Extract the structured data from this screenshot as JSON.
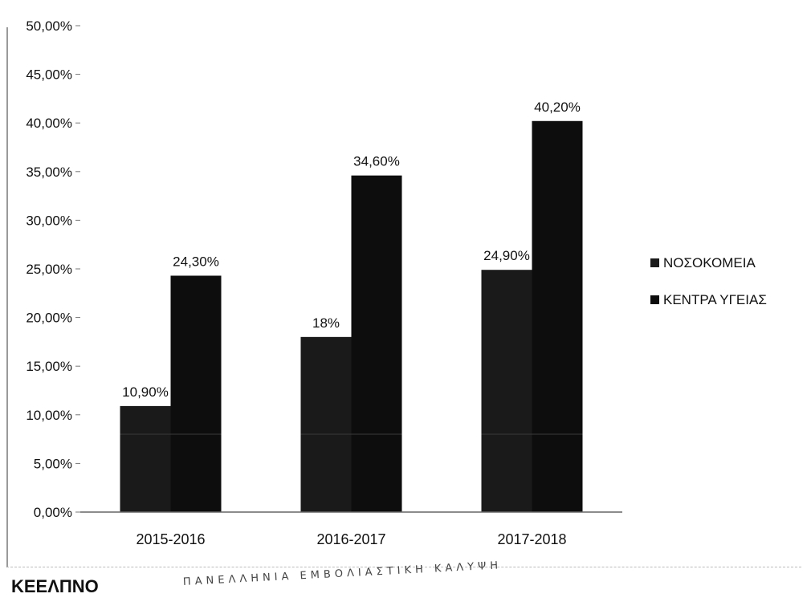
{
  "chart_data": {
    "type": "bar",
    "categories": [
      "2015-2016",
      "2016-2017",
      "2017-2018"
    ],
    "series": [
      {
        "name": "ΝΟΣΟΚΟΜΕΙΑ",
        "values": [
          10.9,
          18.0,
          24.9
        ],
        "labels": [
          "10,90%",
          "18%",
          "24,90%"
        ],
        "color": "#1a1a1a"
      },
      {
        "name": "ΚΕΝΤΡΑ ΥΓΕΙΑΣ",
        "values": [
          24.3,
          34.6,
          40.2
        ],
        "labels": [
          "24,30%",
          "34,60%",
          "40,20%"
        ],
        "color": "#0d0d0d"
      }
    ],
    "ylim": [
      0,
      50
    ],
    "yticks": [
      0,
      5,
      10,
      15,
      20,
      25,
      30,
      35,
      40,
      45,
      50
    ],
    "ytick_labels": [
      "0,00%",
      "5,00%",
      "10,00%",
      "15,00%",
      "20,00%",
      "25,00%",
      "30,00%",
      "35,00%",
      "40,00%",
      "45,00%",
      "50,00%"
    ],
    "legend_position": "right",
    "grid": false
  },
  "footer": {
    "source": "ΚΕΕΛΠΝΟ",
    "note": "ΠΑΝΕΛΛΗΝΙΑ ΕΜΒΟΛΙΑΣΤΙΚΗ ΚΑΛΥΨΗ"
  }
}
